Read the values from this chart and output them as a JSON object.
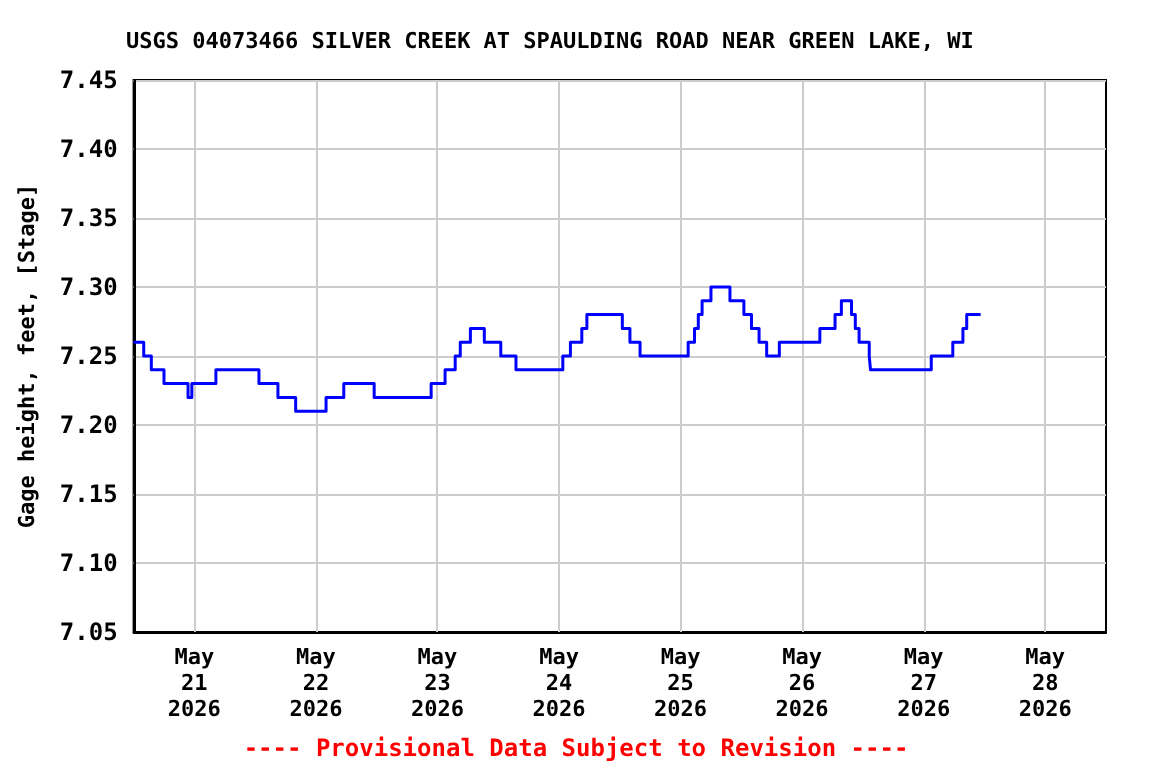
{
  "chart_data": {
    "type": "step",
    "title": "USGS 04073466 SILVER CREEK AT SPAULDING ROAD NEAR GREEN LAKE, WI",
    "ylabel": "Gage height, feet, [Stage]",
    "annotations": [
      "---- Provisional Data Subject to Revision ----"
    ],
    "x": [
      "2026-05-20T12:00",
      "2026-05-20T14:00",
      "2026-05-20T15:30",
      "2026-05-20T18:00",
      "2026-05-20T22:45",
      "2026-05-20T23:30",
      "2026-05-21T04:15",
      "2026-05-21T12:45",
      "2026-05-21T16:30",
      "2026-05-21T20:00",
      "2026-05-22T02:00",
      "2026-05-22T05:30",
      "2026-05-22T11:30",
      "2026-05-22T22:45",
      "2026-05-23T01:30",
      "2026-05-23T03:30",
      "2026-05-23T04:30",
      "2026-05-23T06:30",
      "2026-05-23T09:15",
      "2026-05-23T12:30",
      "2026-05-23T15:30",
      "2026-05-24T00:45",
      "2026-05-24T02:15",
      "2026-05-24T04:30",
      "2026-05-24T05:30",
      "2026-05-24T12:30",
      "2026-05-24T14:00",
      "2026-05-24T16:00",
      "2026-05-25T01:30",
      "2026-05-25T02:45",
      "2026-05-25T03:30",
      "2026-05-25T04:15",
      "2026-05-25T06:00",
      "2026-05-25T09:45",
      "2026-05-25T12:30",
      "2026-05-25T14:00",
      "2026-05-25T15:30",
      "2026-05-25T17:00",
      "2026-05-25T19:30",
      "2026-05-26T03:30",
      "2026-05-26T06:30",
      "2026-05-26T07:45",
      "2026-05-26T09:45",
      "2026-05-26T10:30",
      "2026-05-26T11:15",
      "2026-05-26T13:15",
      "2026-05-26T13:30",
      "2026-05-27T01:30",
      "2026-05-27T05:45",
      "2026-05-27T07:45",
      "2026-05-27T08:30",
      "2026-05-27T11:15"
    ],
    "series": [
      {
        "color": "#0000ff",
        "values": [
          7.26,
          7.25,
          7.24,
          7.23,
          7.22,
          7.23,
          7.24,
          7.23,
          7.22,
          7.21,
          7.22,
          7.23,
          7.22,
          7.23,
          7.24,
          7.25,
          7.26,
          7.27,
          7.26,
          7.25,
          7.24,
          7.25,
          7.26,
          7.27,
          7.28,
          7.27,
          7.26,
          7.25,
          7.26,
          7.27,
          7.28,
          7.29,
          7.3,
          7.29,
          7.28,
          7.27,
          7.26,
          7.25,
          7.26,
          7.27,
          7.28,
          7.29,
          7.28,
          7.27,
          7.26,
          7.25,
          7.24,
          7.25,
          7.26,
          7.27,
          7.28,
          7.28
        ]
      }
    ],
    "xlim": [
      "2026-05-20T12:00",
      "2026-05-28T12:00"
    ],
    "xticks": [
      {
        "value": "2026-05-21",
        "label": "May\n21\n2026"
      },
      {
        "value": "2026-05-22",
        "label": "May\n22\n2026"
      },
      {
        "value": "2026-05-23",
        "label": "May\n23\n2026"
      },
      {
        "value": "2026-05-24",
        "label": "May\n24\n2026"
      },
      {
        "value": "2026-05-25",
        "label": "May\n25\n2026"
      },
      {
        "value": "2026-05-26",
        "label": "May\n26\n2026"
      },
      {
        "value": "2026-05-27",
        "label": "May\n27\n2026"
      },
      {
        "value": "2026-05-28",
        "label": "May\n28\n2026"
      }
    ],
    "ylim": [
      7.05,
      7.45
    ],
    "yticks": [
      7.05,
      {
        "value": 7.1,
        "label": "7.10"
      },
      7.15,
      {
        "value": 7.2,
        "label": "7.20"
      },
      7.25,
      {
        "value": 7.3,
        "label": "7.30"
      },
      7.35,
      {
        "value": 7.4,
        "label": "7.40"
      },
      7.45
    ],
    "grid": true,
    "line_style": "solid",
    "marker": "none"
  }
}
